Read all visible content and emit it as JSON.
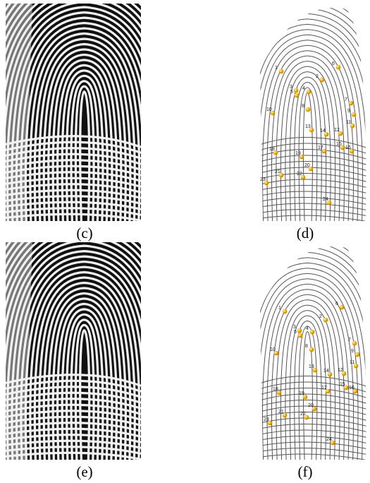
{
  "panels": [
    {
      "caption": "(c)"
    },
    {
      "caption": "(d)",
      "minutiae": [
        "1",
        "6",
        "2",
        "3",
        "4",
        "5",
        "7",
        "8",
        "9",
        "10",
        "11",
        "12",
        "13",
        "14",
        "15",
        "16",
        "17",
        "18",
        "19",
        "20",
        "21",
        "22",
        "23",
        "24"
      ]
    },
    {
      "caption": "(e)"
    },
    {
      "caption": "(f)",
      "minutiae": [
        "1",
        "6",
        "2",
        "3",
        "4",
        "5",
        "7",
        "8",
        "9",
        "10",
        "11",
        "12",
        "13",
        "14",
        "15",
        "16",
        "17",
        "18",
        "19",
        "20",
        "21",
        "22",
        "23",
        "24"
      ]
    }
  ]
}
